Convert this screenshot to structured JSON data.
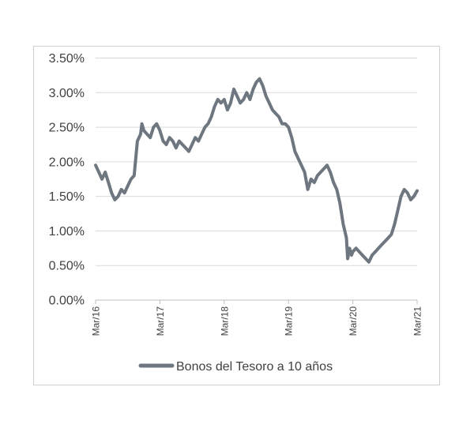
{
  "chart_data": {
    "type": "line",
    "title": "",
    "xlabel": "",
    "ylabel": "",
    "x_ticks": [
      "Mar/16",
      "Mar/17",
      "Mar/18",
      "Mar/19",
      "Mar/20",
      "Mar/21"
    ],
    "y_ticks": [
      "0.00%",
      "0.50%",
      "1.00%",
      "1.50%",
      "2.00%",
      "2.50%",
      "3.00%",
      "3.50%"
    ],
    "ylim": [
      0,
      3.5
    ],
    "grid": "horizontal",
    "legend": "bottom",
    "series": [
      {
        "name": "Bonos del Tesoro a 10 años",
        "color": "#6e7680",
        "x": [
          2016.0,
          2016.05,
          2016.1,
          2016.15,
          2016.2,
          2016.25,
          2016.3,
          2016.35,
          2016.4,
          2016.45,
          2016.5,
          2016.55,
          2016.6,
          2016.65,
          2016.7,
          2016.72,
          2016.75,
          2016.8,
          2016.85,
          2016.9,
          2016.95,
          2017.0,
          2017.05,
          2017.1,
          2017.15,
          2017.2,
          2017.25,
          2017.3,
          2017.35,
          2017.4,
          2017.45,
          2017.5,
          2017.55,
          2017.6,
          2017.65,
          2017.7,
          2017.75,
          2017.8,
          2017.85,
          2017.9,
          2017.95,
          2018.0,
          2018.05,
          2018.1,
          2018.15,
          2018.2,
          2018.25,
          2018.3,
          2018.35,
          2018.4,
          2018.45,
          2018.5,
          2018.55,
          2018.6,
          2018.65,
          2018.7,
          2018.75,
          2018.8,
          2018.85,
          2018.9,
          2018.95,
          2019.0,
          2019.05,
          2019.1,
          2019.15,
          2019.2,
          2019.25,
          2019.3,
          2019.35,
          2019.4,
          2019.45,
          2019.5,
          2019.55,
          2019.6,
          2019.65,
          2019.7,
          2019.75,
          2019.8,
          2019.85,
          2019.9,
          2019.92,
          2019.95,
          2019.98,
          2020.0,
          2020.05,
          2020.1,
          2020.15,
          2020.2,
          2020.25,
          2020.3,
          2020.35,
          2020.4,
          2020.45,
          2020.5,
          2020.55,
          2020.6,
          2020.65,
          2020.7,
          2020.75,
          2020.8,
          2020.85,
          2020.9,
          2020.95,
          2021.0
        ],
        "values": [
          1.95,
          1.85,
          1.75,
          1.85,
          1.7,
          1.55,
          1.45,
          1.5,
          1.6,
          1.55,
          1.65,
          1.75,
          1.8,
          2.3,
          2.4,
          2.55,
          2.45,
          2.4,
          2.35,
          2.5,
          2.55,
          2.45,
          2.3,
          2.25,
          2.35,
          2.3,
          2.2,
          2.3,
          2.25,
          2.2,
          2.15,
          2.25,
          2.35,
          2.3,
          2.4,
          2.5,
          2.55,
          2.65,
          2.8,
          2.9,
          2.85,
          2.9,
          2.75,
          2.85,
          3.05,
          2.95,
          2.85,
          2.9,
          3.0,
          2.9,
          3.05,
          3.15,
          3.2,
          3.1,
          2.95,
          2.85,
          2.75,
          2.7,
          2.65,
          2.55,
          2.55,
          2.5,
          2.35,
          2.15,
          2.05,
          1.95,
          1.85,
          1.6,
          1.75,
          1.7,
          1.8,
          1.85,
          1.9,
          1.95,
          1.85,
          1.7,
          1.6,
          1.4,
          1.1,
          0.9,
          0.6,
          0.75,
          0.65,
          0.7,
          0.75,
          0.7,
          0.65,
          0.6,
          0.55,
          0.65,
          0.7,
          0.75,
          0.8,
          0.85,
          0.9,
          0.95,
          1.1,
          1.3,
          1.5,
          1.6,
          1.55,
          1.45,
          1.5,
          1.58
        ]
      }
    ]
  }
}
